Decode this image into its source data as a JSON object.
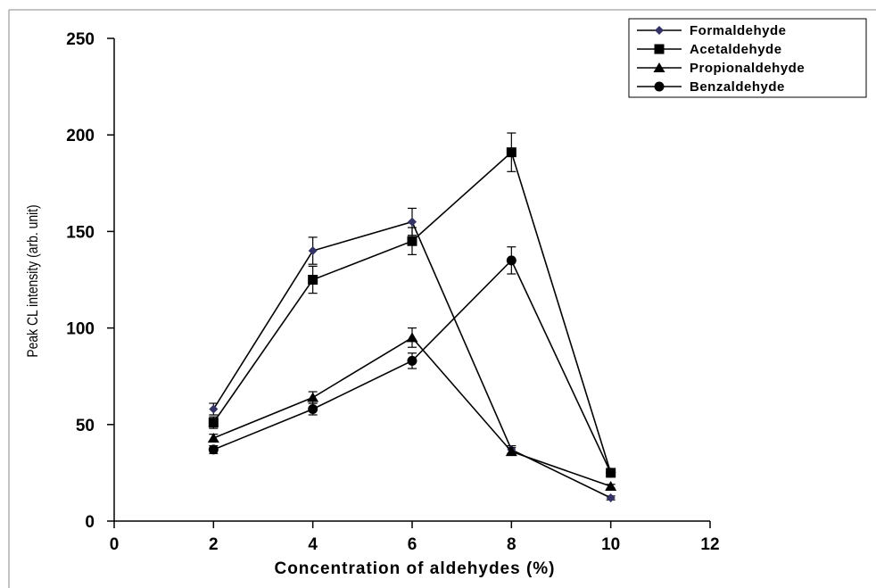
{
  "chart_data": {
    "type": "line",
    "xlabel": "Concentration of aldehydes (%)",
    "ylabel": "Peak CL intensity (arb. unit)",
    "xlim": [
      0,
      12
    ],
    "ylim": [
      0,
      250
    ],
    "xticks": [
      "0",
      "2",
      "4",
      "6",
      "8",
      "10",
      "12"
    ],
    "yticks": [
      "0",
      "50",
      "100",
      "150",
      "200",
      "250"
    ],
    "grid": false,
    "legend_position": "top-right",
    "x": [
      2,
      4,
      6,
      8,
      10
    ],
    "series": [
      {
        "name": "Formaldehyde",
        "marker": "diamond",
        "color": "#333366",
        "values": [
          58,
          140,
          155,
          37,
          12
        ],
        "errors": [
          3,
          7,
          7,
          2,
          1
        ]
      },
      {
        "name": "Acetaldehyde",
        "marker": "square",
        "color": "#000000",
        "values": [
          51,
          125,
          145,
          191,
          25
        ],
        "errors": [
          3,
          7,
          7,
          10,
          1
        ]
      },
      {
        "name": "Propionaldehyde",
        "marker": "triangle",
        "color": "#000000",
        "values": [
          43,
          64,
          95,
          36,
          18
        ],
        "errors": [
          2,
          3,
          5,
          2,
          1
        ]
      },
      {
        "name": "Benzaldehyde",
        "marker": "circle",
        "color": "#000000",
        "values": [
          37,
          58,
          83,
          135,
          25
        ],
        "errors": [
          2,
          3,
          4,
          7,
          1
        ]
      }
    ]
  }
}
